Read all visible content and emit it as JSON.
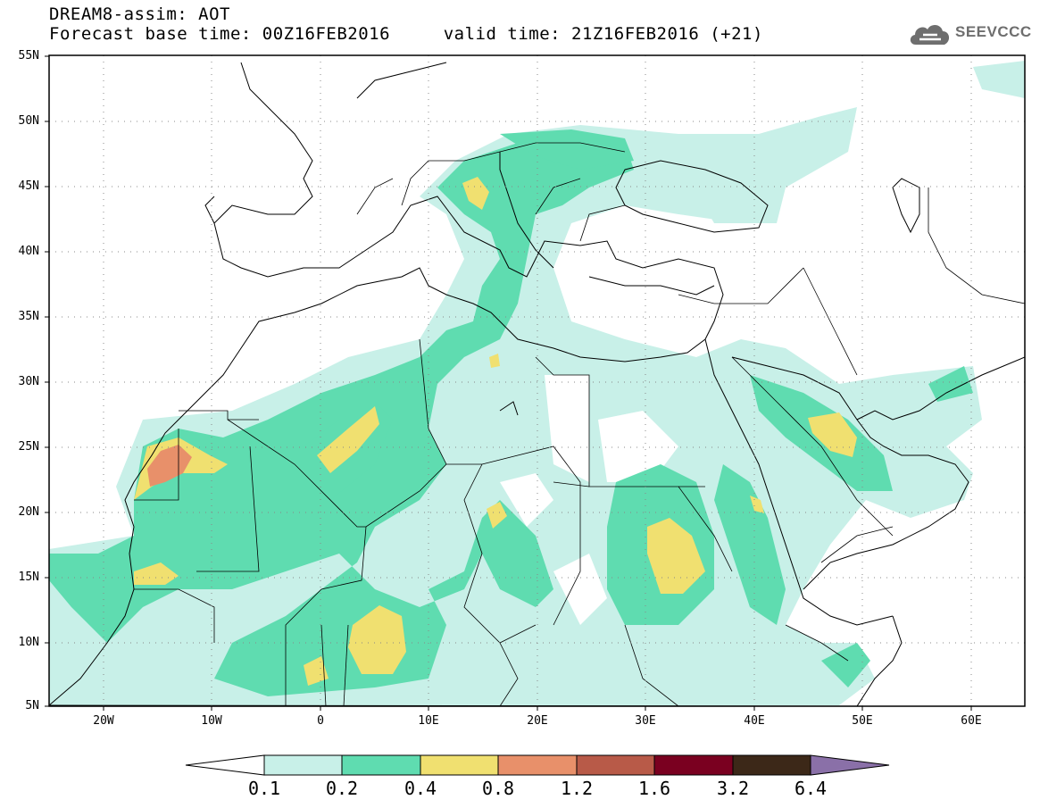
{
  "header": {
    "title_line1": "DREAM8-assim: AOT",
    "title_line2": "Forecast base time: 00Z16FEB2016     valid time: 21Z16FEB2016 (+21)"
  },
  "logo": {
    "text": "SEEVCCC",
    "icon": "cloud-logo-icon"
  },
  "map": {
    "lat_labels": [
      "55N",
      "50N",
      "45N",
      "40N",
      "35N",
      "30N",
      "25N",
      "20N",
      "15N",
      "10N",
      "5N"
    ],
    "lon_labels": [
      "20W",
      "10W",
      "0",
      "10E",
      "20E",
      "30E",
      "40E",
      "50E",
      "60E"
    ]
  },
  "colorbar": {
    "labels": [
      "0.1",
      "0.2",
      "0.4",
      "0.8",
      "1.2",
      "1.6",
      "3.2",
      "6.4"
    ],
    "colors": [
      "#c8f0e8",
      "#5fdcb0",
      "#f0e070",
      "#e8906a",
      "#b85a48",
      "#7a0020",
      "#3c2818",
      "#8a70a8"
    ]
  }
}
